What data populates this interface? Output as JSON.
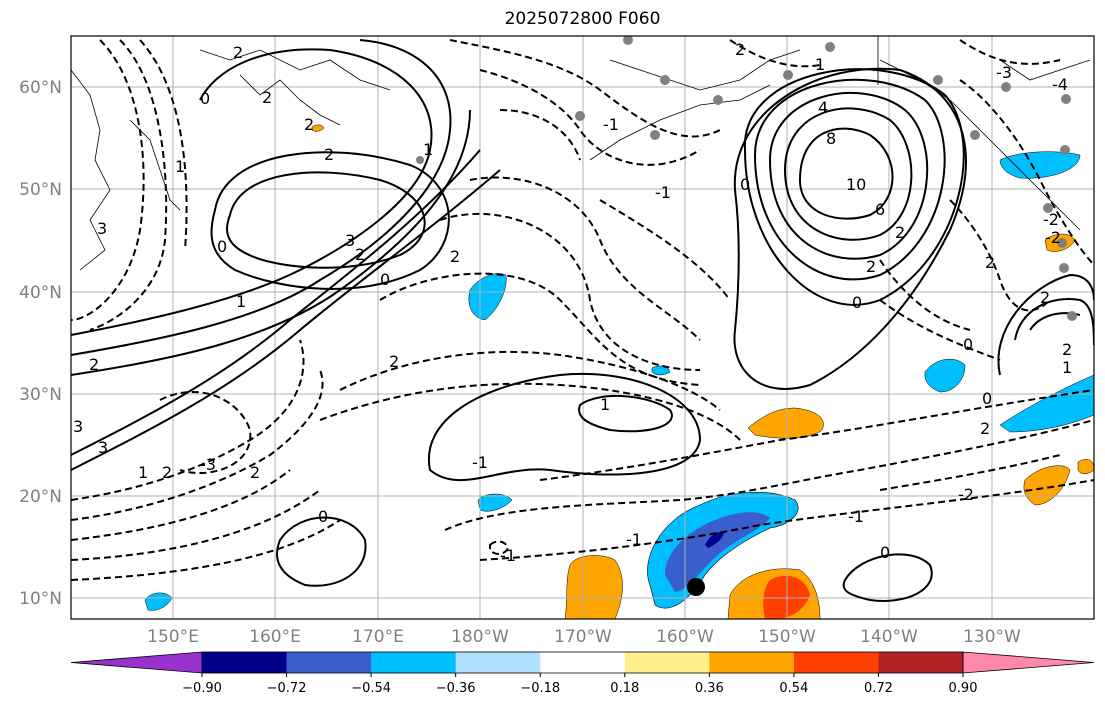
{
  "title": "2025072800 F060",
  "map": {
    "lat_labels": [
      "60°N",
      "50°N",
      "40°N",
      "30°N",
      "20°N",
      "10°N"
    ],
    "lon_labels": [
      "150°E",
      "160°E",
      "170°E",
      "180°W",
      "170°W",
      "160°W",
      "150°W",
      "140°W",
      "130°W"
    ],
    "lat_values": [
      60,
      50,
      40,
      30,
      20,
      10
    ],
    "lon_values": [
      150,
      160,
      170,
      180,
      -170,
      -160,
      -150,
      -140,
      -130
    ],
    "extent": {
      "lon_min": 141.3,
      "lon_max": -118.7,
      "lat_min": 8,
      "lat_max": 65
    }
  },
  "contours": {
    "labels": [
      "2",
      "2",
      "2",
      "2",
      "1",
      "0",
      "0",
      "1",
      "2",
      "3",
      "2",
      "1",
      "0",
      "2",
      "2",
      "1",
      "2",
      "2",
      "1",
      "2",
      "4",
      "8",
      "10",
      "6",
      "2",
      "2",
      "0",
      "0",
      "0",
      "2",
      "2",
      "1",
      "-2",
      "-1",
      "0",
      "-1",
      "-1",
      "0",
      "-1",
      "1",
      "0",
      "2",
      "-3",
      "-4",
      "3",
      "-2",
      "-2",
      "2",
      "-1",
      "-1",
      "3",
      "-3",
      "3"
    ],
    "units": ""
  },
  "colorbar": {
    "ticks": [
      "−0.90",
      "−0.72",
      "−0.54",
      "−0.36",
      "−0.18",
      "0.18",
      "0.36",
      "0.54",
      "0.72",
      "0.90"
    ],
    "colors": [
      "#9932cc",
      "#00008b",
      "#3a5fcd",
      "#00bfff",
      "#b0e2ff",
      "#ffffff",
      "#fff08c",
      "#ffa500",
      "#ff4000",
      "#b22222",
      "#ff88aa"
    ]
  },
  "marker": {
    "lat": 11,
    "lon": -159
  }
}
